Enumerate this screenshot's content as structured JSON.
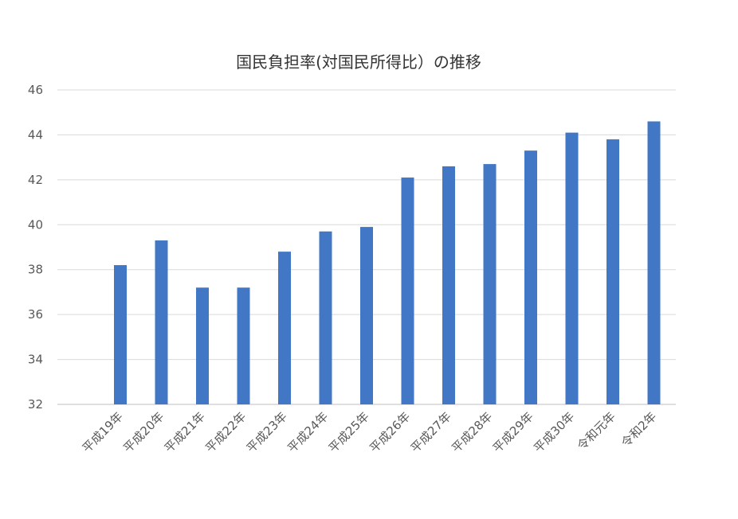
{
  "chart_data": {
    "type": "bar",
    "title": "国民負担率(対国民所得比）の推移",
    "xlabel": "",
    "ylabel": "",
    "categories": [
      "平成19年",
      "平成20年",
      "平成21年",
      "平成22年",
      "平成23年",
      "平成24年",
      "平成25年",
      "平成26年",
      "平成27年",
      "平成28年",
      "平成29年",
      "平成30年",
      "令和元年",
      "令和2年"
    ],
    "values": [
      38.2,
      39.3,
      37.2,
      37.2,
      38.8,
      39.7,
      39.9,
      42.1,
      42.6,
      42.7,
      43.3,
      44.1,
      43.8,
      44.6
    ],
    "ylim": [
      32,
      46
    ],
    "yticks": [
      32,
      34,
      36,
      38,
      40,
      42,
      44,
      46
    ],
    "grid": true,
    "legend": "none",
    "bar_color": "#4177c5"
  }
}
